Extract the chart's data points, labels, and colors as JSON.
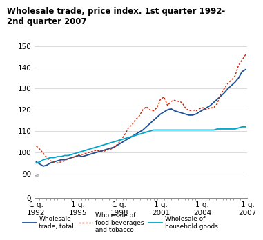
{
  "title": "Wholesale trade, price index. 1st quarter 1992-\n2nd quarter 2007",
  "ylim_main": [
    88,
    150
  ],
  "ylim_break": [
    0,
    6
  ],
  "yticks_main": [
    90,
    100,
    110,
    120,
    130,
    140,
    150
  ],
  "ytick_bottom": 0,
  "xtick_positions": [
    0,
    12,
    24,
    36,
    48,
    61
  ],
  "xtick_labels": [
    "1 q.\n1992",
    "1 q.\n1995",
    "1 q.\n1998",
    "1 q.\n2001",
    "1 q.\n2004",
    "1 q.\n2007"
  ],
  "color_total": "#1f5096",
  "color_food": "#cc2200",
  "color_household": "#00a5c8",
  "wholesale_total": [
    95.5,
    94.5,
    93.5,
    94.0,
    95.0,
    95.5,
    96.0,
    96.5,
    96.5,
    97.0,
    97.5,
    98.0,
    98.5,
    98.0,
    98.5,
    99.0,
    99.5,
    100.0,
    100.5,
    101.0,
    101.5,
    102.0,
    102.5,
    103.5,
    104.5,
    105.5,
    106.5,
    107.5,
    108.5,
    109.5,
    110.5,
    112.0,
    113.5,
    115.0,
    116.5,
    118.0,
    119.0,
    120.0,
    120.5,
    119.5,
    119.0,
    118.5,
    118.0,
    117.5,
    117.5,
    118.0,
    119.0,
    120.0,
    121.0,
    122.0,
    123.5,
    125.0,
    126.5,
    128.0,
    130.0,
    131.5,
    133.0,
    135.0,
    138.0,
    139.0
  ],
  "wholesale_food": [
    103.0,
    101.5,
    99.5,
    97.5,
    96.0,
    95.5,
    95.0,
    95.5,
    96.0,
    97.0,
    97.5,
    98.0,
    99.0,
    99.0,
    99.5,
    100.0,
    100.5,
    101.0,
    100.5,
    100.5,
    101.0,
    101.5,
    102.5,
    104.0,
    106.0,
    108.5,
    111.5,
    113.0,
    115.5,
    117.0,
    120.0,
    121.5,
    120.0,
    119.5,
    121.0,
    125.0,
    126.0,
    122.0,
    124.0,
    124.5,
    124.0,
    123.5,
    121.0,
    119.5,
    120.0,
    119.5,
    120.5,
    121.0,
    120.0,
    121.0,
    121.0,
    123.0,
    127.5,
    130.0,
    132.5,
    134.0,
    136.0,
    141.0,
    143.5,
    146.0
  ],
  "wholesale_household": [
    95.0,
    95.5,
    96.5,
    97.0,
    97.5,
    97.5,
    98.0,
    98.0,
    98.5,
    98.5,
    99.0,
    99.5,
    100.0,
    100.5,
    101.0,
    101.5,
    102.0,
    102.5,
    103.0,
    103.5,
    104.0,
    104.5,
    105.0,
    105.5,
    106.0,
    106.5,
    107.0,
    107.5,
    108.0,
    108.5,
    109.0,
    109.5,
    110.0,
    110.5,
    110.5,
    110.5,
    110.5,
    110.5,
    110.5,
    110.5,
    110.5,
    110.5,
    110.5,
    110.5,
    110.5,
    110.5,
    110.5,
    110.5,
    110.5,
    110.5,
    110.5,
    111.0,
    111.0,
    111.0,
    111.0,
    111.0,
    111.0,
    111.5,
    112.0,
    112.0
  ]
}
